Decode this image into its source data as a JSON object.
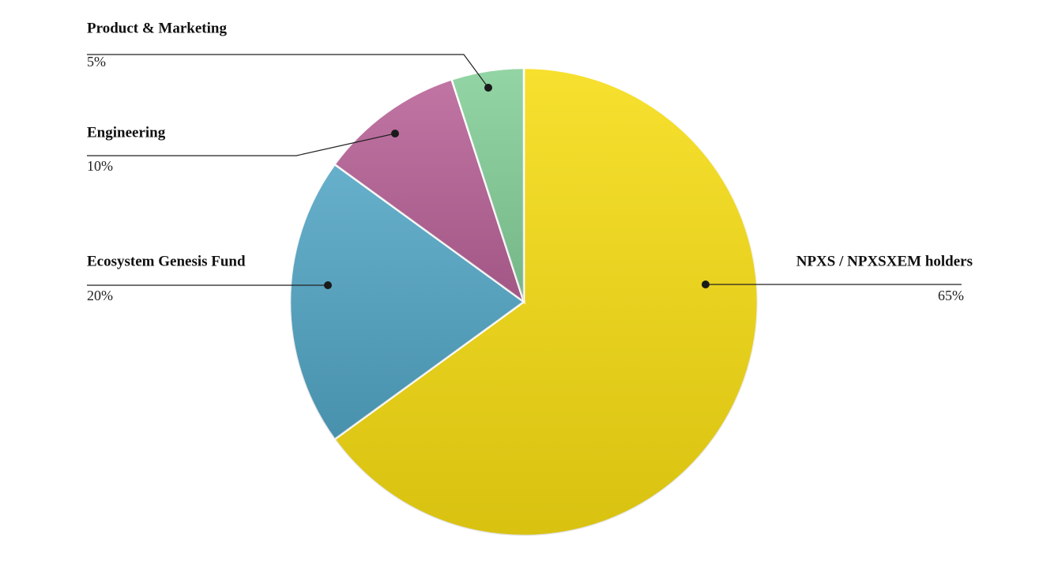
{
  "chart_data": {
    "type": "pie",
    "categories": [
      "NPXS / NPXSXEM holders",
      "Ecosystem Genesis Fund",
      "Engineering",
      "Product & Marketing"
    ],
    "values": [
      65,
      20,
      10,
      5
    ],
    "value_labels": [
      "65%",
      "20%",
      "10%",
      "5%"
    ],
    "colors": [
      "#f6dc12",
      "#52a5c4",
      "#b86297",
      "#84cf98"
    ]
  }
}
